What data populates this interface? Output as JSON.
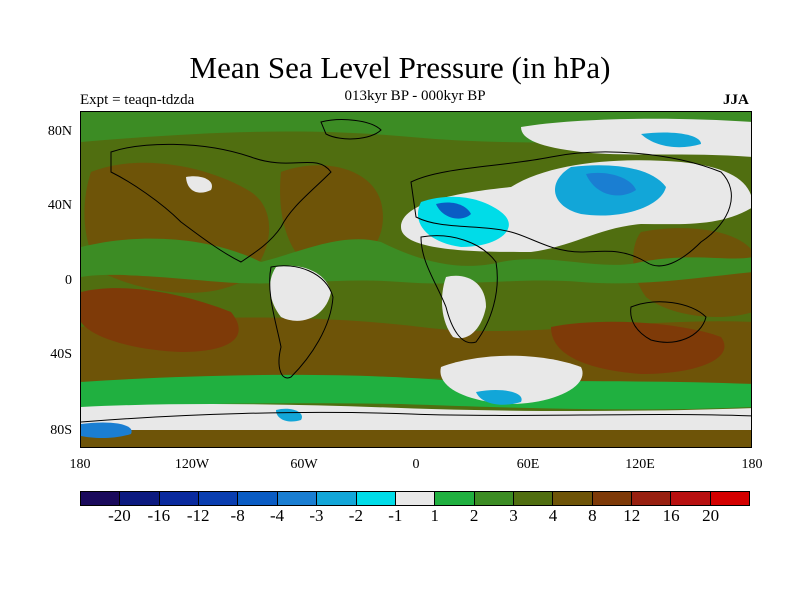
{
  "title": "Mean Sea Level Pressure (in hPa)",
  "subtitle_left": "Expt = teaqn-tdzda",
  "subtitle_center": "013kyr BP - 000kyr BP",
  "subtitle_right": "JJA",
  "lat_labels": [
    "80N",
    "40N",
    "0",
    "40S",
    "80S"
  ],
  "lon_labels": [
    "180",
    "120W",
    "60W",
    "0",
    "60E",
    "120E",
    "180"
  ],
  "colorbar": {
    "colors": [
      "#1a0a5c",
      "#0c1a80",
      "#0a2a9e",
      "#0a3eb0",
      "#0a5cc4",
      "#1a7ed2",
      "#12a6d8",
      "#00dce8",
      "#e8e8e8",
      "#20b040",
      "#3c8c24",
      "#506e10",
      "#6e5408",
      "#7e3a08",
      "#982010",
      "#b81010",
      "#d40000"
    ],
    "labels": [
      "-20",
      "-16",
      "-12",
      "-8",
      "-4",
      "-3",
      "-2",
      "-1",
      "1",
      "2",
      "3",
      "4",
      "8",
      "12",
      "16",
      "20"
    ]
  }
}
